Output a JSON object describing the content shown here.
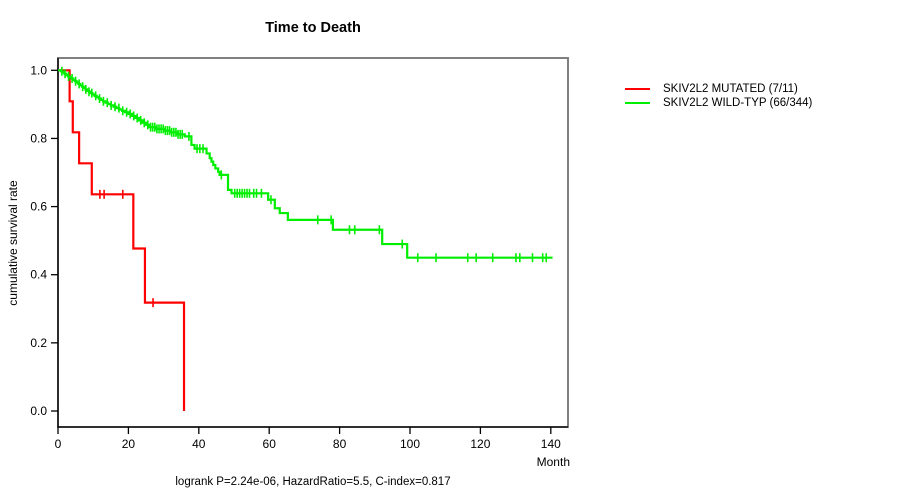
{
  "title": "Time to Death",
  "footer": "logrank P=2.24e-06, HazardRatio=5.5, C-index=0.817",
  "axes": {
    "x_label": "Month",
    "y_label": "cumulative survival rate"
  },
  "chart_data": {
    "type": "line",
    "subtype": "kaplan-meier-step",
    "title": "Time to Death",
    "xlabel": "Month",
    "ylabel": "cumulative survival rate",
    "xlim": [
      0,
      145
    ],
    "ylim": [
      0,
      1
    ],
    "xticks": [
      0,
      20,
      40,
      60,
      80,
      100,
      120,
      140
    ],
    "yticks": [
      "0.0",
      "0.2",
      "0.4",
      "0.6",
      "0.8",
      "1.0"
    ],
    "grid": false,
    "legend_position": "right-outside",
    "annotation": "logrank P=2.24e-06, HazardRatio=5.5, C-index=0.817",
    "box_color": "#808080",
    "axis_color": "#000000",
    "series": [
      {
        "name": "SKIV2L2 MUTATED (7/11)",
        "color": "#ff0000",
        "steps": [
          [
            0,
            1.0
          ],
          [
            3.3,
            0.909
          ],
          [
            4.2,
            0.818
          ],
          [
            6.0,
            0.727
          ],
          [
            9.6,
            0.636
          ],
          [
            21.4,
            0.477
          ],
          [
            24.7,
            0.318
          ],
          [
            35.8,
            0.0
          ]
        ],
        "censor_times": [
          11.9,
          13.1,
          18.4,
          27.0
        ],
        "end_time": 35.8
      },
      {
        "name": "SKIV2L2 WILD-TYP (66/344)",
        "color": "#00ee00",
        "steps": [
          [
            0,
            1.0
          ],
          [
            0.8,
            0.997
          ],
          [
            1.3,
            0.994
          ],
          [
            1.8,
            0.99
          ],
          [
            2.3,
            0.986
          ],
          [
            2.8,
            0.982
          ],
          [
            3.3,
            0.979
          ],
          [
            3.8,
            0.976
          ],
          [
            4.3,
            0.972
          ],
          [
            4.8,
            0.968
          ],
          [
            5.3,
            0.964
          ],
          [
            5.8,
            0.96
          ],
          [
            6.3,
            0.956
          ],
          [
            6.8,
            0.952
          ],
          [
            7.3,
            0.948
          ],
          [
            7.8,
            0.944
          ],
          [
            8.3,
            0.94
          ],
          [
            8.8,
            0.937
          ],
          [
            9.3,
            0.933
          ],
          [
            9.8,
            0.929
          ],
          [
            10.4,
            0.925
          ],
          [
            11.0,
            0.921
          ],
          [
            11.6,
            0.917
          ],
          [
            12.2,
            0.913
          ],
          [
            12.8,
            0.909
          ],
          [
            13.5,
            0.905
          ],
          [
            14.2,
            0.901
          ],
          [
            15.0,
            0.897
          ],
          [
            15.8,
            0.893
          ],
          [
            16.6,
            0.889
          ],
          [
            17.4,
            0.885
          ],
          [
            18.2,
            0.881
          ],
          [
            19.0,
            0.877
          ],
          [
            20.0,
            0.872
          ],
          [
            21.0,
            0.866
          ],
          [
            22.0,
            0.86
          ],
          [
            23.0,
            0.853
          ],
          [
            24.0,
            0.846
          ],
          [
            25.0,
            0.84
          ],
          [
            26.0,
            0.833
          ],
          [
            28.0,
            0.828
          ],
          [
            30.0,
            0.823
          ],
          [
            32.0,
            0.818
          ],
          [
            34.0,
            0.812
          ],
          [
            36.0,
            0.806
          ],
          [
            37.9,
            0.781
          ],
          [
            38.8,
            0.77
          ],
          [
            42.2,
            0.756
          ],
          [
            43.1,
            0.742
          ],
          [
            43.6,
            0.732
          ],
          [
            44.1,
            0.722
          ],
          [
            44.7,
            0.712
          ],
          [
            45.5,
            0.702
          ],
          [
            45.9,
            0.693
          ],
          [
            48.3,
            0.649
          ],
          [
            49.3,
            0.639
          ],
          [
            59.7,
            0.62
          ],
          [
            61.6,
            0.595
          ],
          [
            63.0,
            0.581
          ],
          [
            65.3,
            0.561
          ],
          [
            78.1,
            0.532
          ],
          [
            92.1,
            0.49
          ],
          [
            99.2,
            0.45
          ]
        ],
        "censor_times": [
          1.1,
          2.0,
          3.0,
          4.0,
          5.0,
          6.0,
          7.0,
          7.9,
          8.8,
          9.6,
          10.7,
          11.8,
          12.9,
          14.0,
          15.1,
          16.2,
          17.3,
          18.4,
          19.5,
          20.5,
          21.5,
          22.5,
          23.5,
          24.5,
          25.5,
          26.3,
          26.9,
          27.5,
          28.1,
          28.7,
          29.3,
          29.9,
          30.5,
          31.1,
          31.7,
          32.3,
          32.9,
          33.5,
          34.1,
          34.7,
          35.3,
          37.2,
          39.5,
          40.3,
          41.2,
          46.4,
          50.2,
          50.9,
          51.6,
          52.3,
          53.0,
          53.7,
          54.4,
          55.6,
          56.4,
          57.8,
          60.5,
          73.8,
          77.6,
          82.8,
          84.3,
          91.3,
          97.8,
          102.2,
          107.4,
          116.4,
          118.8,
          123.5,
          130.1,
          131.2,
          134.8,
          137.7,
          138.7
        ],
        "end_time": 140.5
      }
    ]
  }
}
